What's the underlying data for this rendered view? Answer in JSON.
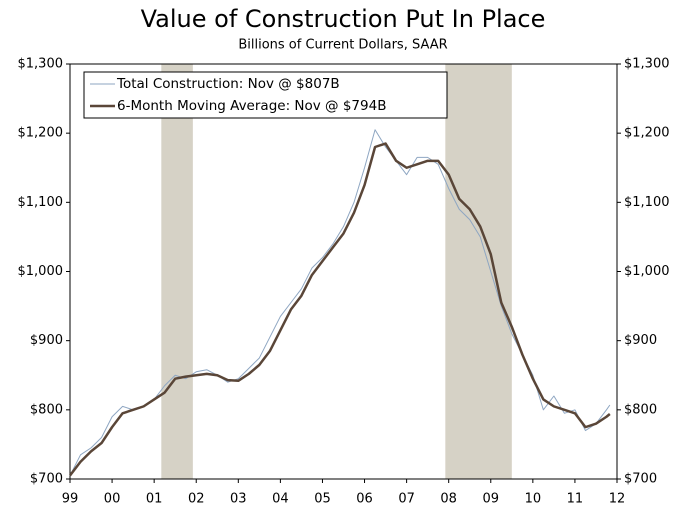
{
  "chart_data": {
    "type": "line",
    "title": "Value of Construction Put In Place",
    "subtitle": "Billions of Current Dollars, SAAR",
    "xlim": [
      1999,
      2012
    ],
    "xticks": [
      {
        "value": 1999,
        "label": "99"
      },
      {
        "value": 2000,
        "label": "00"
      },
      {
        "value": 2001,
        "label": "01"
      },
      {
        "value": 2002,
        "label": "02"
      },
      {
        "value": 2003,
        "label": "03"
      },
      {
        "value": 2004,
        "label": "04"
      },
      {
        "value": 2005,
        "label": "05"
      },
      {
        "value": 2006,
        "label": "06"
      },
      {
        "value": 2007,
        "label": "07"
      },
      {
        "value": 2008,
        "label": "08"
      },
      {
        "value": 2009,
        "label": "09"
      },
      {
        "value": 2010,
        "label": "10"
      },
      {
        "value": 2011,
        "label": "11"
      },
      {
        "value": 2012,
        "label": "12"
      }
    ],
    "ylim": [
      700,
      1300
    ],
    "yticks": [
      {
        "value": 700,
        "label": "$700"
      },
      {
        "value": 800,
        "label": "$800"
      },
      {
        "value": 900,
        "label": "$900"
      },
      {
        "value": 1000,
        "label": "$1,000"
      },
      {
        "value": 1100,
        "label": "$1,100"
      },
      {
        "value": 1200,
        "label": "$1,200"
      },
      {
        "value": 1300,
        "label": "$1,300"
      }
    ],
    "y2lim": [
      700,
      1300
    ],
    "y2ticks": [
      {
        "value": 700,
        "label": "$700"
      },
      {
        "value": 800,
        "label": "$800"
      },
      {
        "value": 900,
        "label": "$900"
      },
      {
        "value": 1000,
        "label": "$1,000"
      },
      {
        "value": 1100,
        "label": "$1,100"
      },
      {
        "value": 1200,
        "label": "$1,200"
      },
      {
        "value": 1300,
        "label": "$1,300"
      }
    ],
    "recessions": [
      [
        2001.17,
        2001.92
      ],
      [
        2007.92,
        2009.5
      ]
    ],
    "recession_color": "#d6d2c6",
    "x": [
      1999,
      1999.25,
      1999.5,
      1999.75,
      2000,
      2000.25,
      2000.5,
      2000.75,
      2001,
      2001.25,
      2001.5,
      2001.75,
      2002,
      2002.25,
      2002.5,
      2002.75,
      2003,
      2003.25,
      2003.5,
      2003.75,
      2004,
      2004.25,
      2004.5,
      2004.75,
      2005,
      2005.25,
      2005.5,
      2005.75,
      2006,
      2006.25,
      2006.5,
      2006.75,
      2007,
      2007.25,
      2007.5,
      2007.75,
      2008,
      2008.25,
      2008.5,
      2008.75,
      2009,
      2009.25,
      2009.5,
      2009.75,
      2010,
      2010.25,
      2010.5,
      2010.75,
      2011,
      2011.25,
      2011.5,
      2011.75,
      2011.83
    ],
    "series": [
      {
        "name": "Total Construction:  Nov @ $807B",
        "color": "#8ea6c2",
        "width": 1,
        "values": [
          705,
          735,
          745,
          760,
          790,
          805,
          800,
          805,
          815,
          835,
          850,
          845,
          855,
          858,
          850,
          840,
          845,
          860,
          875,
          905,
          935,
          955,
          975,
          1005,
          1020,
          1040,
          1065,
          1100,
          1150,
          1205,
          1180,
          1160,
          1140,
          1165,
          1165,
          1155,
          1120,
          1090,
          1075,
          1050,
          1000,
          950,
          910,
          880,
          850,
          800,
          820,
          795,
          800,
          770,
          780,
          800,
          807
        ]
      },
      {
        "name": "6-Month Moving Average:  Nov @ $794B",
        "color": "#5a4638",
        "width": 2.5,
        "values": [
          705,
          725,
          740,
          752,
          775,
          795,
          800,
          805,
          815,
          825,
          845,
          848,
          850,
          852,
          850,
          843,
          842,
          852,
          865,
          885,
          915,
          945,
          965,
          995,
          1015,
          1035,
          1055,
          1085,
          1125,
          1180,
          1185,
          1160,
          1150,
          1155,
          1160,
          1160,
          1140,
          1105,
          1090,
          1065,
          1025,
          955,
          920,
          880,
          845,
          815,
          805,
          800,
          795,
          775,
          780,
          790,
          794
        ]
      }
    ]
  }
}
